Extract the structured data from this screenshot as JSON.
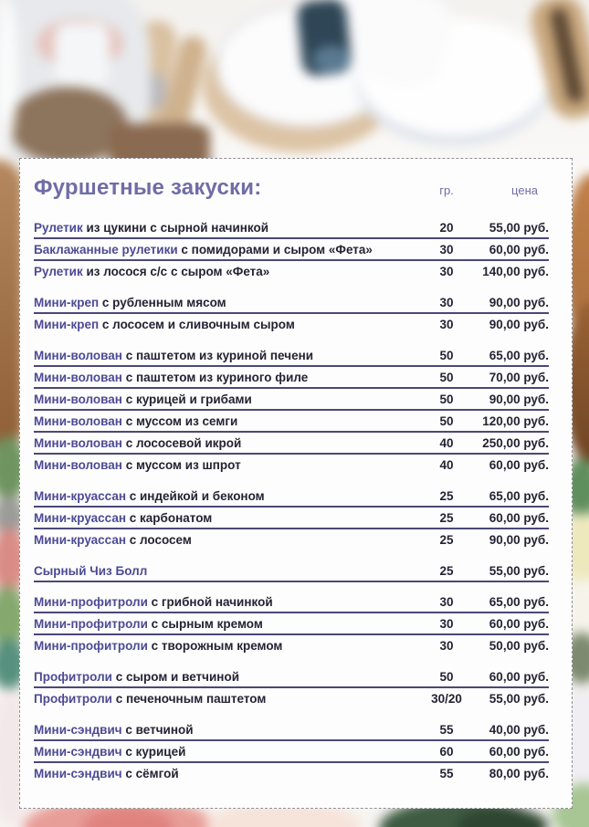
{
  "header": {
    "title": "Фуршетные закуски:",
    "col_qty": "гр.",
    "col_price": "цена"
  },
  "colors": {
    "title_purple": "#6f6da6",
    "accent_purple": "#4c4a94",
    "text_dark": "#252233",
    "rule": "#4a4878"
  },
  "menu": {
    "groups": [
      {
        "items": [
          {
            "name_accent": "Рулетик",
            "name_rest": "из цукини с сырной начинкой",
            "qty": "20",
            "price": "55,00 руб."
          },
          {
            "name_accent": "Баклажанные рулетики",
            "name_rest": "с помидорами и сыром «Фета»",
            "qty": "30",
            "price": "60,00 руб."
          },
          {
            "name_accent": "Рулетик",
            "name_rest": "из лосося с/с с сыром «Фета»",
            "qty": "30",
            "price": "140,00 руб."
          }
        ]
      },
      {
        "items": [
          {
            "name_accent": "Мини-креп",
            "name_rest": "с рубленным мясом",
            "qty": "30",
            "price": "90,00 руб."
          },
          {
            "name_accent": "Мини-креп",
            "name_rest": "с лососем и сливочным сыром",
            "qty": "30",
            "price": "90,00 руб."
          }
        ]
      },
      {
        "items": [
          {
            "name_accent": "Мини-волован",
            "name_rest": "с паштетом из куриной печени",
            "qty": "50",
            "price": "65,00 руб."
          },
          {
            "name_accent": "Мини-волован",
            "name_rest": "с паштетом из куриного филе",
            "qty": "50",
            "price": "70,00 руб."
          },
          {
            "name_accent": "Мини-волован",
            "name_rest": "с курицей и грибами",
            "qty": "50",
            "price": "90,00 руб."
          },
          {
            "name_accent": "Мини-волован",
            "name_rest": "с муссом из семги",
            "qty": "50",
            "price": "120,00 руб."
          },
          {
            "name_accent": "Мини-волован",
            "name_rest": "с лососевой икрой",
            "qty": "40",
            "price": "250,00 руб."
          },
          {
            "name_accent": "Мини-волован",
            "name_rest": "с муссом из шпрот",
            "qty": "40",
            "price": "60,00 руб."
          }
        ]
      },
      {
        "items": [
          {
            "name_accent": "Мини-круассан",
            "name_rest": "с индейкой и беконом",
            "qty": "25",
            "price": "65,00 руб."
          },
          {
            "name_accent": "Мини-круассан",
            "name_rest": "с карбонатом",
            "qty": "25",
            "price": "60,00 руб."
          },
          {
            "name_accent": "Мини-круассан",
            "name_rest": "с лососем",
            "qty": "25",
            "price": "90,00 руб."
          }
        ]
      },
      {
        "rule_last": true,
        "items": [
          {
            "name_accent": "Сырный Чиз Болл",
            "name_rest": "",
            "qty": "25",
            "price": "55,00 руб."
          }
        ]
      },
      {
        "items": [
          {
            "name_accent": "Мини-профитроли",
            "name_rest": "с грибной начинкой",
            "qty": "30",
            "price": "65,00 руб."
          },
          {
            "name_accent": "Мини-профитроли",
            "name_rest": "с сырным кремом",
            "qty": "30",
            "price": "60,00 руб."
          },
          {
            "name_accent": "Мини-профитроли",
            "name_rest": "с творожным кремом",
            "qty": "30",
            "price": "50,00 руб."
          }
        ]
      },
      {
        "items": [
          {
            "name_accent": "Профитроли",
            "name_rest": "с сыром и ветчиной",
            "qty": "50",
            "price": "60,00 руб."
          },
          {
            "name_accent": "Профитроли",
            "name_rest": "с печеночным паштетом",
            "qty": "30/20",
            "price": "55,00 руб."
          }
        ]
      },
      {
        "items": [
          {
            "name_accent": "Мини-сэндвич",
            "name_rest": "с ветчиной",
            "qty": "55",
            "price": "40,00 руб."
          },
          {
            "name_accent": "Мини-сэндвич",
            "name_rest": "с курицей",
            "qty": "60",
            "price": "60,00 руб."
          },
          {
            "name_accent": "Мини-сэндвич",
            "name_rest": "с сёмгой",
            "qty": "55",
            "price": "80,00 руб."
          }
        ]
      }
    ]
  }
}
